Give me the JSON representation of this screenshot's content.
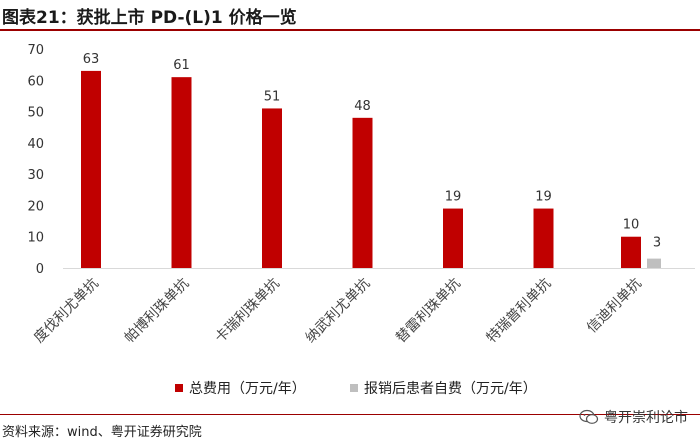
{
  "header": {
    "title": "图表21：获批上市 PD-(L)1 价格一览"
  },
  "footer": {
    "source": "资料来源：wind、粤开证券研究院",
    "watermark": "粤开崇利论市"
  },
  "chart_data": {
    "type": "bar",
    "title": "",
    "xlabel": "",
    "ylabel": "",
    "ylim": [
      0,
      70
    ],
    "yticks": [
      0,
      10,
      20,
      30,
      40,
      50,
      60,
      70
    ],
    "grid": false,
    "legend_position": "bottom",
    "categories": [
      "度伐利尤单抗",
      "帕博利珠单抗",
      "卡瑞利珠单抗",
      "纳武利尤单抗",
      "替雷利珠单抗",
      "特瑞普利单抗",
      "信迪利单抗"
    ],
    "series": [
      {
        "name": "总费用（万元/年）",
        "color": "#c00000",
        "values": [
          63,
          61,
          51,
          48,
          19,
          19,
          10
        ]
      },
      {
        "name": "报销后患者自费（万元/年）",
        "color": "#bfbfbf",
        "values": [
          null,
          null,
          null,
          null,
          null,
          null,
          3
        ]
      }
    ]
  }
}
